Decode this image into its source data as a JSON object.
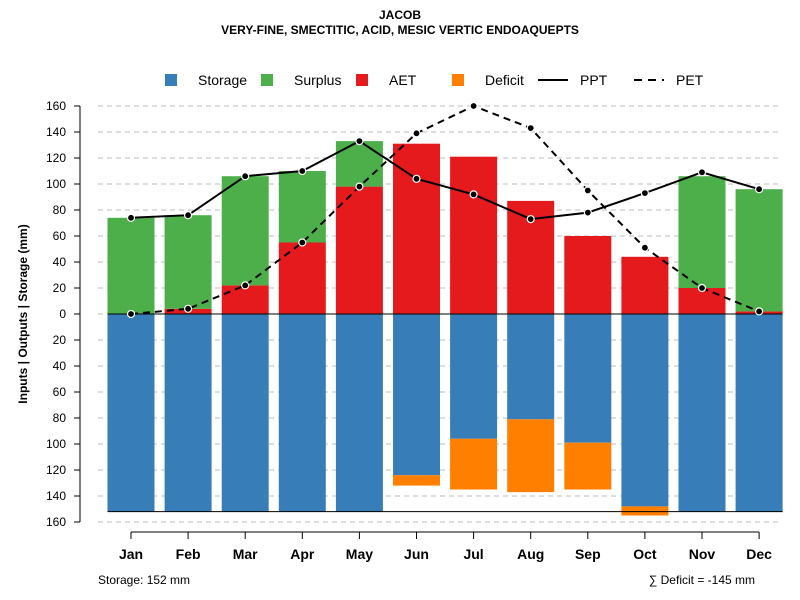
{
  "chart_data": {
    "type": "bar",
    "title": "JACOB",
    "subtitle": "VERY-FINE, SMECTITIC, ACID, MESIC VERTIC ENDOAQUEPTS",
    "ylabel": "Inputs | Outputs | Storage    (mm)",
    "xlabel": "",
    "ylim": [
      -160,
      160
    ],
    "yticks": [
      160,
      140,
      120,
      100,
      80,
      60,
      40,
      20,
      0,
      20,
      40,
      60,
      80,
      100,
      120,
      140,
      160
    ],
    "categories": [
      "Jan",
      "Feb",
      "Mar",
      "Apr",
      "May",
      "Jun",
      "Jul",
      "Aug",
      "Sep",
      "Oct",
      "Nov",
      "Dec"
    ],
    "legend": [
      "Storage",
      "Surplus",
      "AET",
      "Deficit",
      "PPT",
      "PET"
    ],
    "legend_position": "top",
    "grid": true,
    "colors": {
      "storage": "#377eb8",
      "surplus": "#4daf4a",
      "aet": "#e41a1c",
      "deficit": "#ff7f00",
      "line": "#000000",
      "grid": "#bebebe"
    },
    "series": [
      {
        "name": "AET",
        "values": [
          0,
          4,
          22,
          55,
          98,
          131,
          121,
          87,
          60,
          44,
          20,
          2
        ]
      },
      {
        "name": "Surplus",
        "values": [
          74,
          72,
          84,
          55,
          35,
          0,
          0,
          0,
          0,
          0,
          86,
          94
        ]
      },
      {
        "name": "Storage",
        "values": [
          152,
          152,
          152,
          152,
          152,
          124,
          96,
          81,
          99,
          148,
          152,
          152
        ]
      },
      {
        "name": "Deficit",
        "values": [
          0,
          0,
          0,
          0,
          0,
          8,
          39,
          56,
          36,
          7,
          0,
          0
        ]
      },
      {
        "name": "PPT",
        "values": [
          74,
          76,
          106,
          110,
          133,
          104,
          92,
          73,
          78,
          93,
          109,
          96
        ]
      },
      {
        "name": "PET",
        "values": [
          0,
          4,
          22,
          55,
          98,
          139,
          160,
          143,
          95,
          51,
          20,
          2
        ]
      }
    ],
    "storage_capacity": 152
  },
  "footer": {
    "storage_note": "Storage: 152 mm",
    "deficit_note": "∑ Deficit = -145 mm"
  }
}
